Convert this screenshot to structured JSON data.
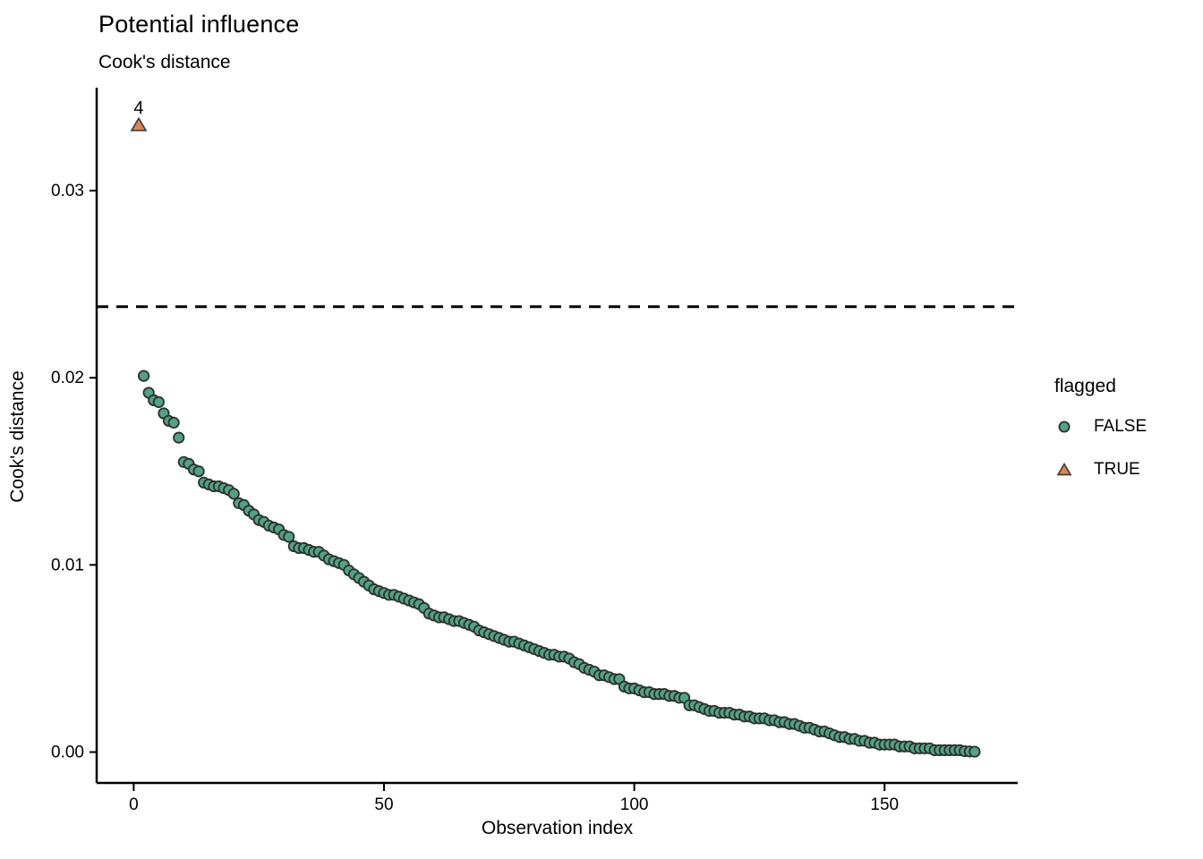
{
  "header": {
    "title": "Potential influence",
    "subtitle": "Cook's distance"
  },
  "chart_data": {
    "type": "scatter",
    "title": "Potential influence",
    "subtitle": "Cook's distance",
    "xlabel": "Observation index",
    "ylabel": "Cook's distance",
    "xlim": [
      -7.4,
      176.6
    ],
    "ylim": [
      -0.00165,
      0.0355
    ],
    "x_ticks": [
      0,
      50,
      100,
      150
    ],
    "x_tick_labels": [
      "0",
      "50",
      "100",
      "150"
    ],
    "y_ticks": [
      0,
      0.01,
      0.02,
      0.03
    ],
    "y_tick_labels": [
      "0.00",
      "0.01",
      "0.02",
      "0.03"
    ],
    "grid": false,
    "axes_shown": [
      "left",
      "bottom"
    ],
    "cutoff_line": {
      "y": 0.0238,
      "style": "dashed",
      "color": "#000000",
      "width": 3,
      "dash": "13 9"
    },
    "legend": {
      "title": "flagged",
      "position": "right",
      "entries": [
        {
          "label": "FALSE",
          "marker": "circle",
          "fill": "#4fa484",
          "stroke": "#2f2f2f"
        },
        {
          "label": "TRUE",
          "marker": "triangle",
          "fill": "#dd8452",
          "stroke": "#3f3f3f"
        }
      ]
    },
    "series": [
      {
        "name": "FALSE",
        "marker": "circle",
        "fill": "#4fa484",
        "stroke": "#2f2f2f",
        "x": [
          2,
          3,
          4,
          5,
          6,
          7,
          8,
          9,
          10,
          11,
          12,
          13,
          14,
          15,
          16,
          17,
          18,
          19,
          20,
          21,
          22,
          23,
          24,
          25,
          26,
          27,
          28,
          29,
          30,
          31,
          32,
          33,
          34,
          35,
          36,
          37,
          38,
          39,
          40,
          41,
          42,
          43,
          44,
          45,
          46,
          47,
          48,
          49,
          50,
          51,
          52,
          53,
          54,
          55,
          56,
          57,
          58,
          59,
          60,
          61,
          62,
          63,
          64,
          65,
          66,
          67,
          68,
          69,
          70,
          71,
          72,
          73,
          74,
          75,
          76,
          77,
          78,
          79,
          80,
          81,
          82,
          83,
          84,
          85,
          86,
          87,
          88,
          89,
          90,
          91,
          92,
          93,
          94,
          95,
          96,
          97,
          98,
          99,
          100,
          101,
          102,
          103,
          104,
          105,
          106,
          107,
          108,
          109,
          110,
          111,
          112,
          113,
          114,
          115,
          116,
          117,
          118,
          119,
          120,
          121,
          122,
          123,
          124,
          125,
          126,
          127,
          128,
          129,
          130,
          131,
          132,
          133,
          134,
          135,
          136,
          137,
          138,
          139,
          140,
          141,
          142,
          143,
          144,
          145,
          146,
          147,
          148,
          149,
          150,
          151,
          152,
          153,
          154,
          155,
          156,
          157,
          158,
          159,
          160,
          161,
          162,
          163,
          164,
          165,
          166,
          167,
          168
        ],
        "values": [
          0.0201,
          0.0192,
          0.0188,
          0.0187,
          0.0181,
          0.0177,
          0.0176,
          0.0168,
          0.0155,
          0.0154,
          0.0151,
          0.015,
          0.0144,
          0.0143,
          0.0142,
          0.0142,
          0.0141,
          0.014,
          0.0138,
          0.0133,
          0.0132,
          0.0129,
          0.0127,
          0.0124,
          0.0123,
          0.0121,
          0.012,
          0.0119,
          0.0116,
          0.0115,
          0.011,
          0.0109,
          0.0109,
          0.0108,
          0.0107,
          0.0107,
          0.0105,
          0.0103,
          0.0102,
          0.0101,
          0.01,
          0.0097,
          0.0095,
          0.0093,
          0.0091,
          0.0089,
          0.0087,
          0.0086,
          0.0085,
          0.0084,
          0.0084,
          0.0083,
          0.0082,
          0.0081,
          0.008,
          0.0079,
          0.0077,
          0.0074,
          0.0073,
          0.0072,
          0.0072,
          0.0071,
          0.007,
          0.007,
          0.0069,
          0.0068,
          0.0067,
          0.0065,
          0.0064,
          0.0063,
          0.0062,
          0.0061,
          0.006,
          0.0059,
          0.0059,
          0.0058,
          0.0057,
          0.0056,
          0.0055,
          0.0054,
          0.0053,
          0.0052,
          0.0052,
          0.0051,
          0.0051,
          0.005,
          0.0048,
          0.0047,
          0.0045,
          0.0044,
          0.0043,
          0.0041,
          0.0041,
          0.004,
          0.0039,
          0.0039,
          0.0035,
          0.0034,
          0.0034,
          0.0033,
          0.0032,
          0.0032,
          0.0031,
          0.0031,
          0.0031,
          0.003,
          0.003,
          0.0029,
          0.0029,
          0.0025,
          0.0025,
          0.0024,
          0.0023,
          0.0022,
          0.0022,
          0.0021,
          0.0021,
          0.0021,
          0.002,
          0.002,
          0.0019,
          0.0019,
          0.0018,
          0.0018,
          0.0018,
          0.0017,
          0.0017,
          0.0016,
          0.0016,
          0.0015,
          0.0015,
          0.0014,
          0.0013,
          0.0013,
          0.0012,
          0.0011,
          0.0011,
          0.001,
          0.0009,
          0.0008,
          0.0008,
          0.0007,
          0.0007,
          0.0006,
          0.0006,
          0.0005,
          0.0005,
          0.0004,
          0.0004,
          0.0004,
          0.0004,
          0.0003,
          0.0003,
          0.0003,
          0.0002,
          0.0002,
          0.0002,
          0.0002,
          0.0001,
          0.0001,
          0.0001,
          0.0001,
          0.0001,
          0.0001,
          5e-05,
          3e-05,
          2e-05
        ]
      },
      {
        "name": "TRUE",
        "marker": "triangle",
        "fill": "#dd8452",
        "stroke": "#3f3f3f",
        "x": [
          1
        ],
        "values": [
          0.0335
        ],
        "point_labels": [
          "4"
        ]
      }
    ]
  }
}
